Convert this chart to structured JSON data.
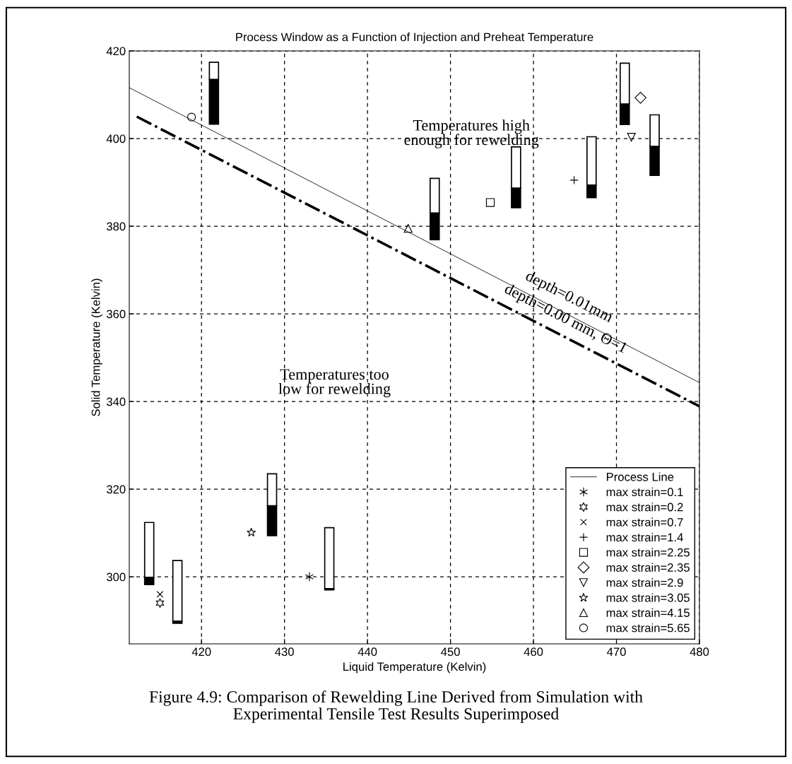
{
  "chart_data": {
    "type": "bar",
    "title": "Process Window as a Function of Injection and Preheat Temperature",
    "xlabel": "Liquid Temperature (Kelvin)",
    "ylabel": "Solid Temperature (Kelvin)",
    "x": [
      413.7,
      417.1,
      421.5,
      428.5,
      435.4,
      448.1,
      457.9,
      467.0,
      471.0,
      474.6
    ],
    "series": [
      {
        "color": "#000000",
        "base": [
          298.2,
          289.4,
          403.3,
          309.4,
          297.0,
          376.9,
          384.2,
          386.5,
          403.2,
          391.6
        ],
        "values": [
          1.7,
          0.5,
          10.2,
          6.8,
          0.3,
          6.1,
          4.5,
          2.9,
          4.7,
          6.6
        ]
      },
      {
        "color": "#ffffff",
        "base": [
          299.9,
          289.9,
          413.5,
          316.2,
          297.3,
          383.0,
          388.7,
          389.4,
          407.9,
          398.2
        ],
        "values": [
          12.5,
          13.8,
          3.9,
          7.3,
          13.9,
          7.9,
          9.4,
          11.0,
          9.3,
          7.2
        ]
      },
      {
        "type": "line",
        "name": "Process Line",
        "color": "#000000",
        "line_style": "solid",
        "marker": "none",
        "x": [
          411.3,
          480
        ],
        "values": [
          411.6,
          344.3
        ]
      },
      {
        "type": "line",
        "color": "#000000",
        "line_style": "dashdot",
        "marker": "none",
        "x": [
          412.2,
          480
        ],
        "values": [
          405.0,
          338.9
        ]
      },
      {
        "type": "scatter",
        "name": "max strain=0.1",
        "color": "#000000",
        "marker": "cross",
        "x": [
          433.0
        ],
        "values": [
          300.0
        ]
      },
      {
        "type": "scatter",
        "name": "max strain=0.2",
        "color": "#000000",
        "x": [
          415.0
        ],
        "values": [
          294.0
        ]
      },
      {
        "type": "scatter",
        "name": "max strain=0.7",
        "color": "#000000",
        "marker": "x",
        "x": [
          415.0
        ],
        "values": [
          296.0
        ]
      },
      {
        "type": "scatter",
        "name": "max strain=1.4",
        "color": "#000000",
        "marker": "plus",
        "x": [
          464.9
        ],
        "values": [
          390.5
        ]
      },
      {
        "type": "scatter",
        "name": "max strain=2.25",
        "color": "#000000",
        "marker": "square",
        "x": [
          454.8
        ],
        "values": [
          385.4
        ]
      },
      {
        "type": "scatter",
        "name": "max strain=2.35",
        "color": "#000000",
        "marker": "diamond",
        "x": [
          472.9
        ],
        "values": [
          409.3
        ]
      },
      {
        "type": "scatter",
        "name": "max strain=2.9",
        "color": "#000000",
        "marker": "triangle_down",
        "x": [
          471.8
        ],
        "values": [
          400.3
        ]
      },
      {
        "type": "scatter",
        "name": "max strain=3.05",
        "color": "#000000",
        "marker": "star",
        "x": [
          426.0
        ],
        "values": [
          310.1
        ]
      },
      {
        "type": "scatter",
        "name": "max strain=4.15",
        "color": "#000000",
        "marker": "triangle",
        "x": [
          444.9
        ],
        "values": [
          379.5
        ]
      },
      {
        "type": "scatter",
        "name": "max strain=5.65",
        "color": "#000000",
        "marker": "circle",
        "x": [
          418.8
        ],
        "values": [
          404.9
        ]
      }
    ],
    "xlim": [
      411.3,
      480
    ],
    "xticks": [
      420,
      430,
      440,
      450,
      460,
      470,
      480
    ],
    "ylim": [
      284.7,
      420
    ],
    "yticks": [
      300,
      320,
      340,
      360,
      380,
      400,
      420
    ],
    "grid": true,
    "legend": "bottom right",
    "annotations": [
      {
        "text": "depth=0.01mm",
        "x": 463.4,
        "y": 360.5
      },
      {
        "text": "depth=0.00 mm, Θ=1",
        "x": 463.0,
        "y": 355.5
      },
      "Temperatures high\nenough for rewelding",
      "Temperatures too\nlow for rewelding",
      "Figure 4.9: Comparison of Rewelding Line Derived from Simulation with\nExperimental Tensile Test Results Superimposed"
    ]
  }
}
